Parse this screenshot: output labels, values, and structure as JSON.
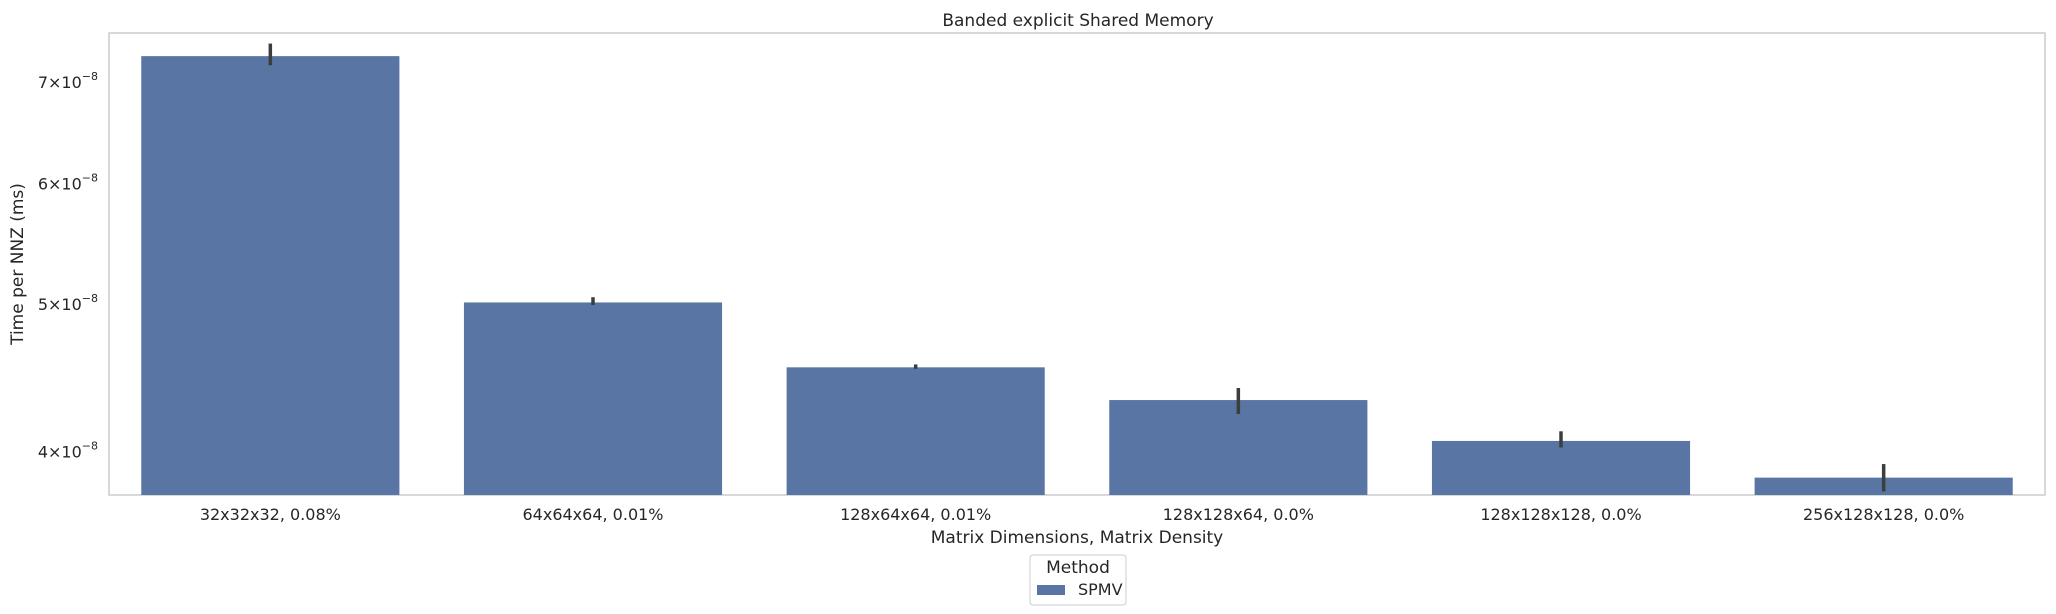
{
  "chart_data": {
    "type": "bar",
    "title": "Banded explicit Shared Memory",
    "xlabel": "Matrix Dimensions, Matrix Density",
    "ylabel": "Time per NNZ (ms)",
    "yscale": "log",
    "ylim": [
      3.75e-08,
      7.55e-08
    ],
    "grid": false,
    "categories": [
      "32x32x32, 0.08%",
      "64x64x64, 0.01%",
      "128x64x64, 0.01%",
      "128x128x64, 0.0%",
      "128x128x128, 0.0%",
      "256x128x128, 0.0%"
    ],
    "series": [
      {
        "name": "SPMV",
        "color": "#5875a4",
        "values": [
          7.29e-08,
          5.02e-08,
          4.55e-08,
          4.33e-08,
          4.07e-08,
          3.85e-08
        ],
        "error_low": [
          7.19e-08,
          5e-08,
          4.54e-08,
          4.24e-08,
          4.03e-08,
          3.77e-08
        ],
        "error_high": [
          7.43e-08,
          5.06e-08,
          4.57e-08,
          4.41e-08,
          4.13e-08,
          3.93e-08
        ]
      }
    ],
    "yticks": [
      {
        "value": 4e-08,
        "mantissa": "4",
        "exponent": "−8"
      },
      {
        "value": 5e-08,
        "mantissa": "5",
        "exponent": "−8"
      },
      {
        "value": 6e-08,
        "mantissa": "6",
        "exponent": "−8"
      },
      {
        "value": 7e-08,
        "mantissa": "7",
        "exponent": "−8"
      }
    ],
    "legend": {
      "title": "Method",
      "placement": "bottom-center"
    }
  }
}
